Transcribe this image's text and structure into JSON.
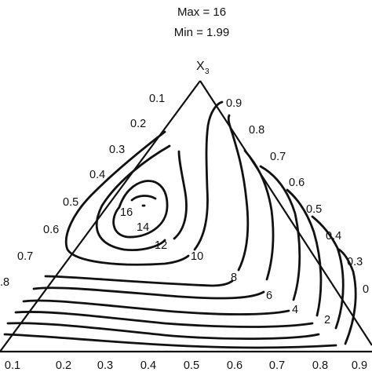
{
  "header": {
    "max_text": "Max = 16",
    "min_text": "Min = 1.99"
  },
  "chart_data": {
    "type": "ternary contour",
    "vertex_label": "X",
    "vertex_label_sub": "3",
    "max_value": 16,
    "min_value": 1.99,
    "left_edge_ticks": [
      "0.1",
      "0.2",
      "0.3",
      "0.4",
      "0.5",
      "0.6",
      "0.7",
      ".8"
    ],
    "right_edge_ticks": [
      "0.9",
      "0.8",
      "0.7",
      "0.6",
      "0.5",
      "0.4",
      "0.3",
      "0"
    ],
    "bottom_edge_ticks": [
      "0.1",
      "0.2",
      "0.3",
      "0.4",
      "0.5",
      "0.6",
      "0.7",
      "0.8",
      "0.9"
    ],
    "contour_levels": [
      2,
      4,
      6,
      8,
      10,
      12,
      14,
      16
    ],
    "contour_labels": [
      "16",
      "14",
      "12",
      "10",
      "8",
      "6",
      "4",
      "2"
    ],
    "colors": {
      "line": "#111111",
      "background": "#ffffff"
    }
  }
}
